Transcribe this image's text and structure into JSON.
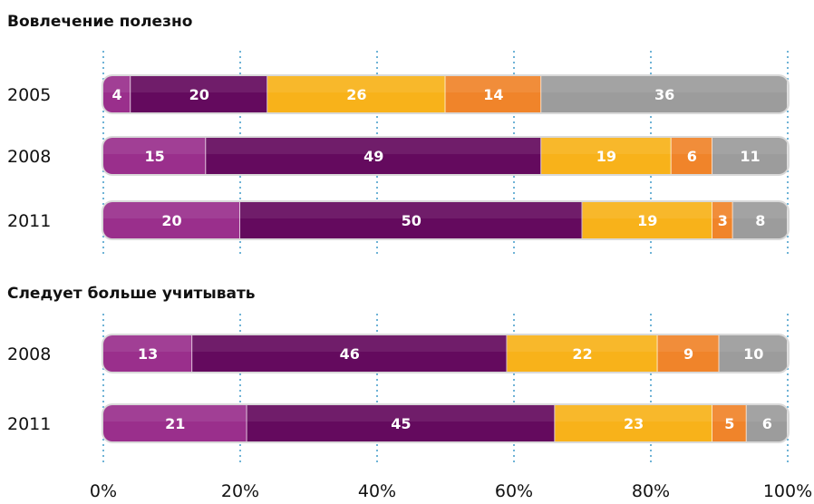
{
  "chart_data": {
    "type": "bar",
    "orientation": "horizontal",
    "stacked": true,
    "colors": [
      "#9a2f8c",
      "#640a5e",
      "#f8b21a",
      "#f0842a",
      "#9c9c9c"
    ],
    "xaxis": {
      "ticks": [
        "0%",
        "20%",
        "40%",
        "60%",
        "80%",
        "100%"
      ],
      "xlim": [
        0,
        100
      ]
    },
    "panels": [
      {
        "title": "Вовлечение полезно",
        "rows": [
          {
            "label": "2005",
            "values": [
              4,
              20,
              26,
              14,
              36
            ]
          },
          {
            "label": "2008",
            "values": [
              15,
              49,
              19,
              6,
              11
            ]
          },
          {
            "label": "2011",
            "values": [
              20,
              50,
              19,
              3,
              8
            ]
          }
        ]
      },
      {
        "title": "Следует больше учитывать",
        "rows": [
          {
            "label": "2008",
            "values": [
              13,
              46,
              22,
              9,
              10
            ]
          },
          {
            "label": "2011",
            "values": [
              21,
              45,
              23,
              5,
              6
            ]
          }
        ]
      }
    ]
  }
}
